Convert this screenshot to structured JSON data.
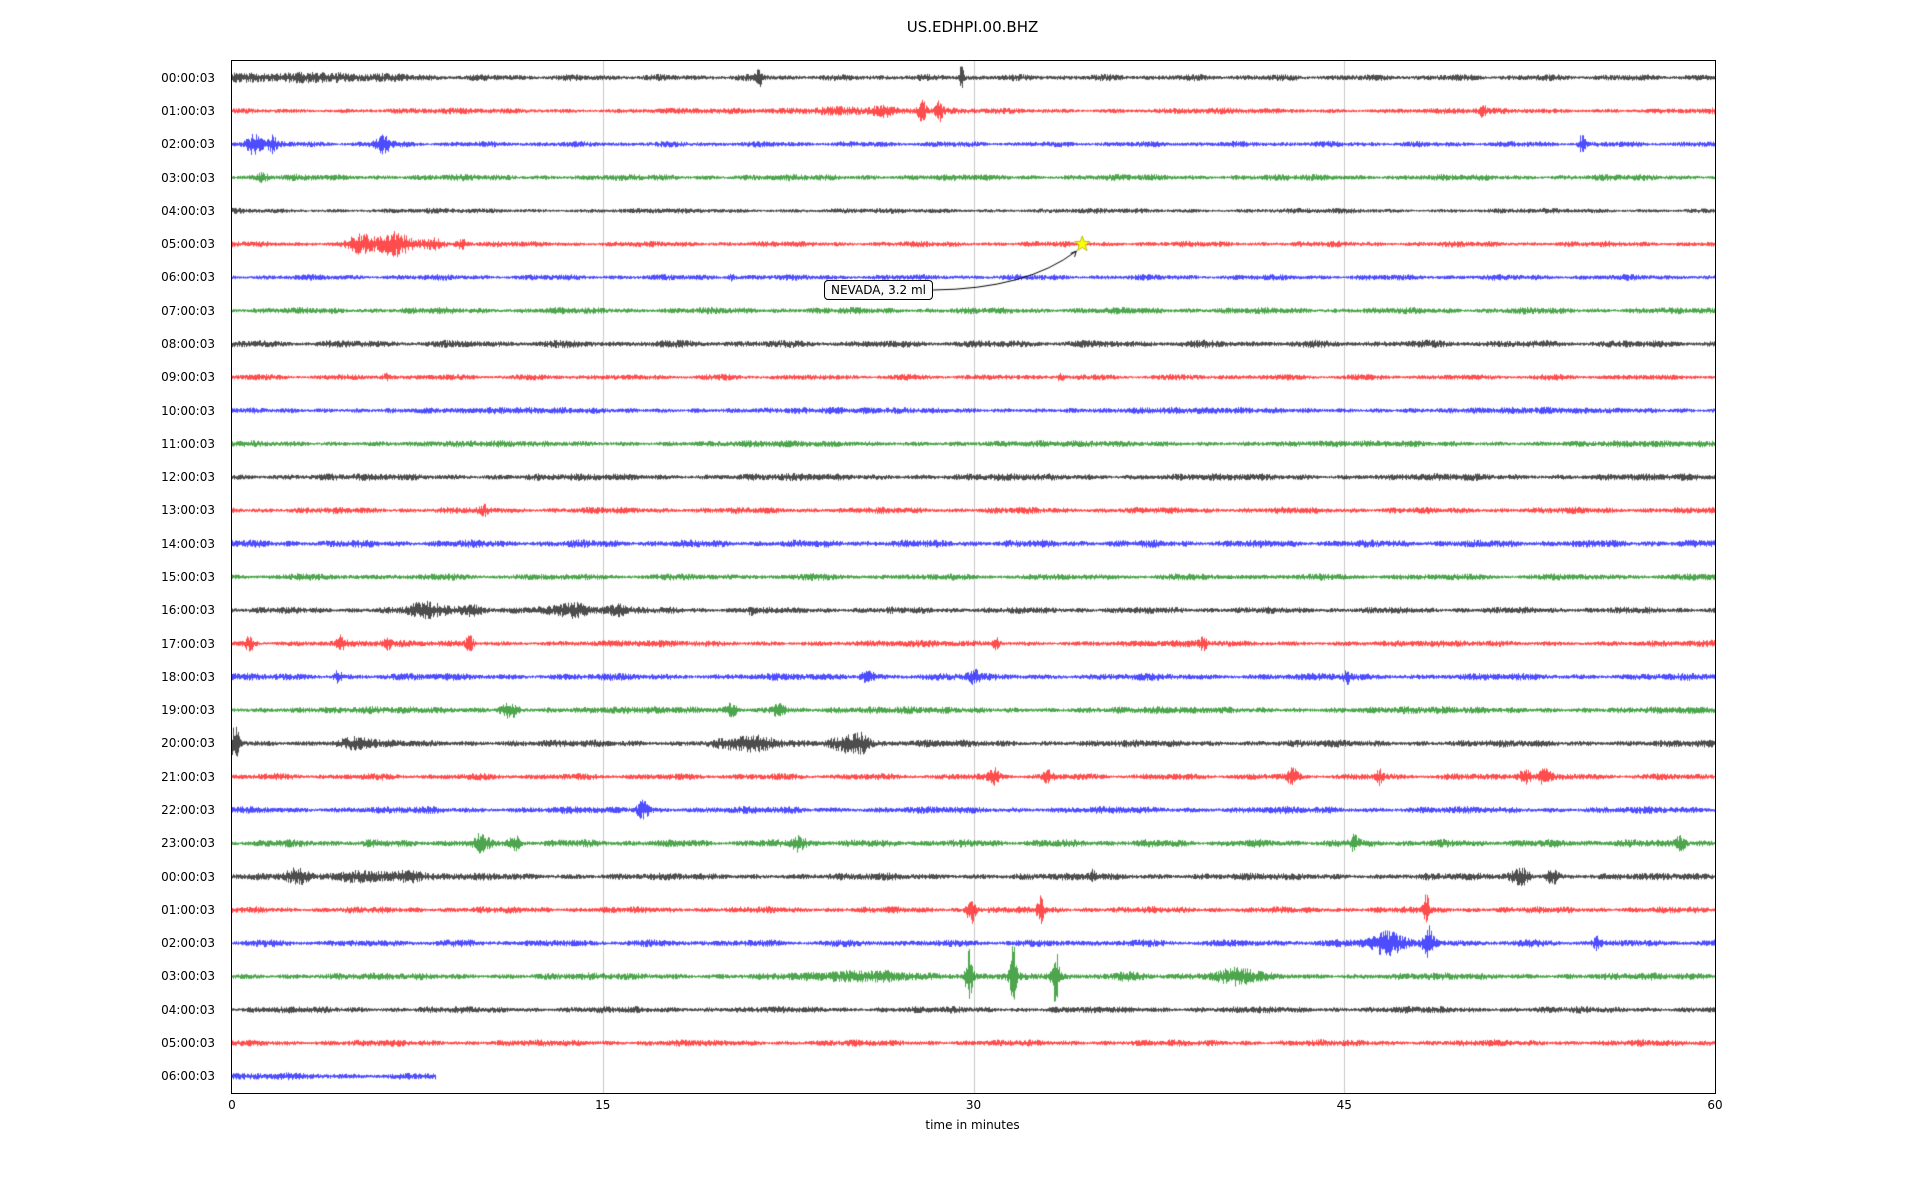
{
  "title": "US.EDHPI.00.BHZ",
  "annotation": {
    "text": "NEVADA, 3.2 ml",
    "attached_row_index": 5,
    "star_minute": 34.4,
    "star_color": "#ffff00"
  },
  "chart_data": {
    "type": "line",
    "subtype": "seismogram-helicorder-dayplot",
    "station": "US.EDHPI.00.BHZ",
    "xlabel": "time in minutes",
    "xlim": [
      0,
      60
    ],
    "x_ticks": [
      0,
      15,
      30,
      45,
      60
    ],
    "grid_minutes": [
      15,
      30,
      45
    ],
    "interval_minutes": 60,
    "grid_on": true,
    "colors": {
      "black": "#000000",
      "red": "#ff0000",
      "blue": "#0000ff",
      "green": "#008000",
      "grid": "#c8c8c8",
      "star": "#ffff00"
    },
    "rows": [
      {
        "label": "00:00:03",
        "color": "black",
        "base": 2.6,
        "end": 60,
        "events": [
          {
            "t": 1.5,
            "s": 2.5,
            "a": 2.5
          },
          {
            "t": 5,
            "s": 1.5,
            "a": 1.5
          },
          {
            "t": 21.3,
            "s": 0.08,
            "a": 9
          },
          {
            "t": 29.5,
            "s": 0.06,
            "a": 12
          }
        ]
      },
      {
        "label": "01:00:03",
        "color": "red",
        "base": 2.4,
        "end": 60,
        "events": [
          {
            "t": 24.5,
            "s": 1.2,
            "a": 3
          },
          {
            "t": 26.3,
            "s": 0.3,
            "a": 5
          },
          {
            "t": 27.9,
            "s": 0.12,
            "a": 11
          },
          {
            "t": 28.6,
            "s": 0.1,
            "a": 9
          },
          {
            "t": 50.6,
            "s": 0.08,
            "a": 6
          }
        ]
      },
      {
        "label": "02:00:03",
        "color": "blue",
        "base": 2.4,
        "end": 60,
        "events": [
          {
            "t": 0.9,
            "s": 0.25,
            "a": 11
          },
          {
            "t": 1.6,
            "s": 0.15,
            "a": 7
          },
          {
            "t": 6.1,
            "s": 0.2,
            "a": 9
          },
          {
            "t": 54.6,
            "s": 0.1,
            "a": 9
          }
        ]
      },
      {
        "label": "03:00:03",
        "color": "green",
        "base": 2.6,
        "end": 60,
        "events": [
          {
            "t": 1.2,
            "s": 0.15,
            "a": 3
          }
        ]
      },
      {
        "label": "04:00:03",
        "color": "black",
        "base": 2.1,
        "end": 60,
        "events": []
      },
      {
        "label": "05:00:03",
        "color": "red",
        "base": 2.4,
        "end": 60,
        "events": [
          {
            "t": 5.2,
            "s": 0.35,
            "a": 9
          },
          {
            "t": 6.6,
            "s": 0.45,
            "a": 11
          },
          {
            "t": 8.1,
            "s": 0.3,
            "a": 6
          },
          {
            "t": 9.3,
            "s": 0.15,
            "a": 4
          }
        ]
      },
      {
        "label": "06:00:03",
        "color": "blue",
        "base": 2.4,
        "end": 60,
        "events": [
          {
            "t": 20.2,
            "s": 0.1,
            "a": 3
          }
        ]
      },
      {
        "label": "07:00:03",
        "color": "green",
        "base": 2.7,
        "end": 60,
        "events": []
      },
      {
        "label": "08:00:03",
        "color": "black",
        "base": 3.0,
        "end": 60,
        "events": []
      },
      {
        "label": "09:00:03",
        "color": "red",
        "base": 2.4,
        "end": 60,
        "events": [
          {
            "t": 6.2,
            "s": 0.1,
            "a": 3
          },
          {
            "t": 33.5,
            "s": 0.1,
            "a": 3
          }
        ]
      },
      {
        "label": "10:00:03",
        "color": "blue",
        "base": 2.7,
        "end": 60,
        "events": []
      },
      {
        "label": "11:00:03",
        "color": "green",
        "base": 2.7,
        "end": 60,
        "events": []
      },
      {
        "label": "12:00:03",
        "color": "black",
        "base": 2.9,
        "end": 60,
        "events": []
      },
      {
        "label": "13:00:03",
        "color": "red",
        "base": 2.7,
        "end": 60,
        "events": [
          {
            "t": 10.2,
            "s": 0.12,
            "a": 3.5
          }
        ]
      },
      {
        "label": "14:00:03",
        "color": "blue",
        "base": 3.1,
        "end": 60,
        "events": []
      },
      {
        "label": "15:00:03",
        "color": "green",
        "base": 2.7,
        "end": 60,
        "events": []
      },
      {
        "label": "16:00:03",
        "color": "black",
        "base": 2.7,
        "end": 60,
        "events": [
          {
            "t": 7.9,
            "s": 0.5,
            "a": 7
          },
          {
            "t": 9.6,
            "s": 0.4,
            "a": 5
          },
          {
            "t": 13.8,
            "s": 0.6,
            "a": 6
          },
          {
            "t": 15.6,
            "s": 0.3,
            "a": 5
          },
          {
            "t": 21,
            "s": 0.1,
            "a": 4
          }
        ]
      },
      {
        "label": "17:00:03",
        "color": "red",
        "base": 2.7,
        "end": 60,
        "events": [
          {
            "t": 0.7,
            "s": 0.15,
            "a": 7
          },
          {
            "t": 4.4,
            "s": 0.12,
            "a": 6
          },
          {
            "t": 6.3,
            "s": 0.1,
            "a": 5
          },
          {
            "t": 9.6,
            "s": 0.12,
            "a": 7
          },
          {
            "t": 30.9,
            "s": 0.1,
            "a": 5
          },
          {
            "t": 39.3,
            "s": 0.1,
            "a": 7
          }
        ]
      },
      {
        "label": "18:00:03",
        "color": "blue",
        "base": 2.9,
        "end": 60,
        "events": [
          {
            "t": 4.3,
            "s": 0.12,
            "a": 6
          },
          {
            "t": 25.7,
            "s": 0.2,
            "a": 6
          },
          {
            "t": 30,
            "s": 0.15,
            "a": 7
          },
          {
            "t": 45.1,
            "s": 0.1,
            "a": 6
          }
        ]
      },
      {
        "label": "19:00:03",
        "color": "green",
        "base": 2.9,
        "end": 60,
        "events": [
          {
            "t": 11.2,
            "s": 0.25,
            "a": 7
          },
          {
            "t": 20.2,
            "s": 0.15,
            "a": 6
          },
          {
            "t": 22.1,
            "s": 0.2,
            "a": 7
          }
        ]
      },
      {
        "label": "20:00:03",
        "color": "black",
        "base": 2.9,
        "end": 60,
        "events": [
          {
            "t": 0.15,
            "s": 0.12,
            "a": 20
          },
          {
            "t": 5,
            "s": 0.5,
            "a": 4
          },
          {
            "t": 20.8,
            "s": 0.8,
            "a": 6
          },
          {
            "t": 24.9,
            "s": 0.5,
            "a": 8
          },
          {
            "t": 25.5,
            "s": 0.2,
            "a": 6
          }
        ]
      },
      {
        "label": "21:00:03",
        "color": "red",
        "base": 2.7,
        "end": 60,
        "events": [
          {
            "t": 30.8,
            "s": 0.15,
            "a": 8
          },
          {
            "t": 33,
            "s": 0.12,
            "a": 6
          },
          {
            "t": 42.9,
            "s": 0.15,
            "a": 7
          },
          {
            "t": 46.4,
            "s": 0.1,
            "a": 7
          },
          {
            "t": 52.3,
            "s": 0.2,
            "a": 7
          },
          {
            "t": 53.1,
            "s": 0.15,
            "a": 8
          }
        ]
      },
      {
        "label": "22:00:03",
        "color": "blue",
        "base": 2.9,
        "end": 60,
        "events": [
          {
            "t": 16.6,
            "s": 0.18,
            "a": 8
          }
        ]
      },
      {
        "label": "23:00:03",
        "color": "green",
        "base": 3.1,
        "end": 60,
        "events": [
          {
            "t": 10.1,
            "s": 0.2,
            "a": 8
          },
          {
            "t": 11.4,
            "s": 0.15,
            "a": 7
          },
          {
            "t": 22.9,
            "s": 0.2,
            "a": 7
          },
          {
            "t": 45.4,
            "s": 0.12,
            "a": 7
          },
          {
            "t": 58.6,
            "s": 0.15,
            "a": 8
          }
        ]
      },
      {
        "label": "00:00:03",
        "color": "black",
        "base": 2.9,
        "end": 60,
        "events": [
          {
            "t": 2.6,
            "s": 0.3,
            "a": 6
          },
          {
            "t": 5.3,
            "s": 0.8,
            "a": 5
          },
          {
            "t": 7.2,
            "s": 0.4,
            "a": 5
          },
          {
            "t": 34.8,
            "s": 0.1,
            "a": 6
          },
          {
            "t": 52.1,
            "s": 0.25,
            "a": 8
          },
          {
            "t": 53.4,
            "s": 0.2,
            "a": 7
          }
        ]
      },
      {
        "label": "01:00:03",
        "color": "red",
        "base": 2.7,
        "end": 60,
        "events": [
          {
            "t": 29.9,
            "s": 0.12,
            "a": 15
          },
          {
            "t": 32.7,
            "s": 0.1,
            "a": 13
          },
          {
            "t": 48.3,
            "s": 0.08,
            "a": 17
          }
        ]
      },
      {
        "label": "02:00:03",
        "color": "blue",
        "base": 2.9,
        "end": 60,
        "events": [
          {
            "t": 46.7,
            "s": 0.5,
            "a": 12
          },
          {
            "t": 48.4,
            "s": 0.15,
            "a": 15
          },
          {
            "t": 55.2,
            "s": 0.1,
            "a": 5
          }
        ]
      },
      {
        "label": "03:00:03",
        "color": "green",
        "base": 2.9,
        "end": 60,
        "events": [
          {
            "t": 26,
            "s": 1.5,
            "a": 4
          },
          {
            "t": 29.8,
            "s": 0.1,
            "a": 25
          },
          {
            "t": 31.6,
            "s": 0.1,
            "a": 29
          },
          {
            "t": 33.3,
            "s": 0.1,
            "a": 27
          },
          {
            "t": 36.2,
            "s": 0.4,
            "a": 4
          },
          {
            "t": 40.7,
            "s": 0.6,
            "a": 7
          }
        ]
      },
      {
        "label": "04:00:03",
        "color": "black",
        "base": 2.7,
        "end": 60,
        "events": []
      },
      {
        "label": "05:00:03",
        "color": "red",
        "base": 2.7,
        "end": 60,
        "events": []
      },
      {
        "label": "06:00:03",
        "color": "blue",
        "base": 2.9,
        "end": 8.2,
        "events": []
      }
    ]
  }
}
